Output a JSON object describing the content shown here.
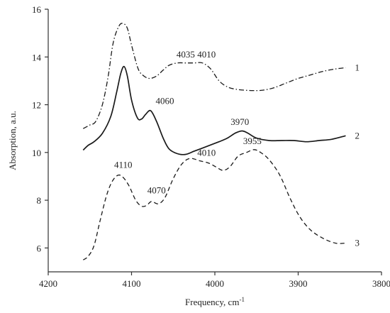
{
  "chart_data": {
    "type": "line",
    "title": "",
    "xlabel": "Frequency, cm",
    "xlabel_superscript": "-1",
    "ylabel": "Absorption, a.u.",
    "xlim": [
      4200,
      3800
    ],
    "ylim": [
      5,
      16
    ],
    "x_reversed": true,
    "grid": false,
    "x_ticks": [
      4200,
      4100,
      4000,
      3900,
      3800
    ],
    "y_ticks": [
      6,
      8,
      10,
      12,
      14,
      16
    ],
    "series": [
      {
        "name": "1",
        "style": "dashdot",
        "points": [
          [
            4158,
            11.0
          ],
          [
            4150,
            11.15
          ],
          [
            4143,
            11.3
          ],
          [
            4135,
            12.0
          ],
          [
            4128,
            13.2
          ],
          [
            4122,
            14.6
          ],
          [
            4115,
            15.3
          ],
          [
            4110,
            15.4
          ],
          [
            4105,
            15.2
          ],
          [
            4100,
            14.5
          ],
          [
            4092,
            13.5
          ],
          [
            4085,
            13.2
          ],
          [
            4078,
            13.1
          ],
          [
            4070,
            13.2
          ],
          [
            4062,
            13.45
          ],
          [
            4055,
            13.65
          ],
          [
            4045,
            13.75
          ],
          [
            4035,
            13.75
          ],
          [
            4025,
            13.75
          ],
          [
            4015,
            13.75
          ],
          [
            4005,
            13.5
          ],
          [
            3995,
            13.0
          ],
          [
            3985,
            12.75
          ],
          [
            3975,
            12.65
          ],
          [
            3960,
            12.6
          ],
          [
            3945,
            12.6
          ],
          [
            3930,
            12.7
          ],
          [
            3915,
            12.9
          ],
          [
            3900,
            13.1
          ],
          [
            3885,
            13.25
          ],
          [
            3870,
            13.4
          ],
          [
            3855,
            13.5
          ],
          [
            3843,
            13.55
          ]
        ]
      },
      {
        "name": "2",
        "style": "solid",
        "points": [
          [
            4158,
            10.1
          ],
          [
            4152,
            10.3
          ],
          [
            4145,
            10.45
          ],
          [
            4135,
            10.8
          ],
          [
            4125,
            11.5
          ],
          [
            4118,
            12.5
          ],
          [
            4113,
            13.3
          ],
          [
            4109,
            13.6
          ],
          [
            4105,
            13.2
          ],
          [
            4100,
            12.2
          ],
          [
            4093,
            11.45
          ],
          [
            4088,
            11.4
          ],
          [
            4083,
            11.6
          ],
          [
            4077,
            11.75
          ],
          [
            4070,
            11.3
          ],
          [
            4062,
            10.6
          ],
          [
            4055,
            10.15
          ],
          [
            4045,
            9.95
          ],
          [
            4035,
            9.92
          ],
          [
            4025,
            10.05
          ],
          [
            4010,
            10.25
          ],
          [
            3995,
            10.45
          ],
          [
            3985,
            10.6
          ],
          [
            3975,
            10.82
          ],
          [
            3967,
            10.9
          ],
          [
            3960,
            10.8
          ],
          [
            3950,
            10.6
          ],
          [
            3935,
            10.5
          ],
          [
            3920,
            10.5
          ],
          [
            3905,
            10.5
          ],
          [
            3890,
            10.45
          ],
          [
            3875,
            10.5
          ],
          [
            3860,
            10.55
          ],
          [
            3843,
            10.7
          ]
        ]
      },
      {
        "name": "3",
        "style": "dashed",
        "points": [
          [
            4158,
            5.5
          ],
          [
            4152,
            5.65
          ],
          [
            4145,
            6.1
          ],
          [
            4138,
            7.1
          ],
          [
            4130,
            8.2
          ],
          [
            4123,
            8.8
          ],
          [
            4116,
            9.05
          ],
          [
            4110,
            8.95
          ],
          [
            4103,
            8.6
          ],
          [
            4095,
            8.0
          ],
          [
            4088,
            7.75
          ],
          [
            4082,
            7.78
          ],
          [
            4076,
            7.95
          ],
          [
            4068,
            7.85
          ],
          [
            4060,
            8.1
          ],
          [
            4050,
            8.9
          ],
          [
            4040,
            9.5
          ],
          [
            4030,
            9.75
          ],
          [
            4018,
            9.65
          ],
          [
            4007,
            9.55
          ],
          [
            3998,
            9.38
          ],
          [
            3990,
            9.25
          ],
          [
            3982,
            9.4
          ],
          [
            3972,
            9.85
          ],
          [
            3962,
            10.0
          ],
          [
            3953,
            10.12
          ],
          [
            3945,
            10.0
          ],
          [
            3935,
            9.7
          ],
          [
            3922,
            9.05
          ],
          [
            3910,
            8.1
          ],
          [
            3898,
            7.3
          ],
          [
            3885,
            6.75
          ],
          [
            3870,
            6.4
          ],
          [
            3855,
            6.2
          ],
          [
            3843,
            6.2
          ]
        ]
      }
    ],
    "annotations": [
      {
        "text": "4035",
        "x": 4035,
        "y": 13.8
      },
      {
        "text": "4010",
        "x": 4010,
        "y": 13.8
      },
      {
        "text": "4060",
        "x": 4060,
        "y": 11.85
      },
      {
        "text": "3970",
        "x": 3970,
        "y": 10.98
      },
      {
        "text": "4110",
        "x": 4110,
        "y": 9.18
      },
      {
        "text": "4070",
        "x": 4070,
        "y": 8.1
      },
      {
        "text": "4010",
        "x": 4010,
        "y": 9.68
      },
      {
        "text": "3955",
        "x": 3955,
        "y": 10.18
      }
    ]
  }
}
